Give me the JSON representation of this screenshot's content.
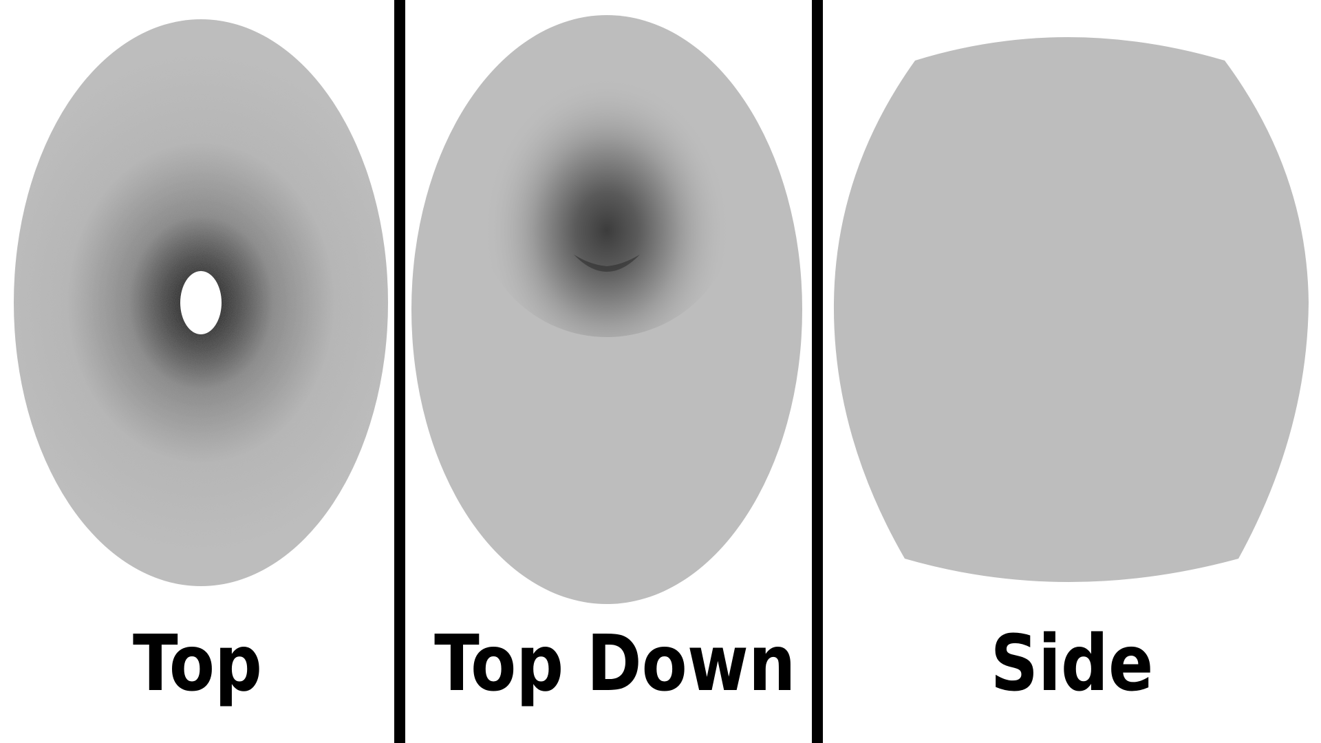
{
  "panels": [
    {
      "label": "Top"
    },
    {
      "label": "Top Down"
    },
    {
      "label": "Side"
    }
  ],
  "colors": {
    "background": "#ffffff",
    "surface": "#bdbdbd",
    "shade": "#2a2a2a",
    "divider": "#000000",
    "text": "#000000"
  }
}
